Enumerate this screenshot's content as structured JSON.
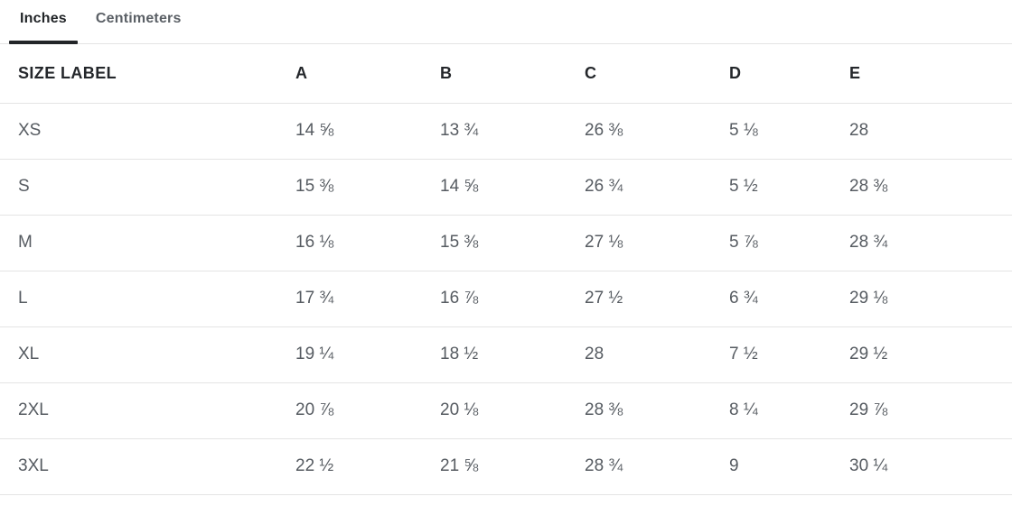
{
  "tabs": [
    {
      "id": "inches",
      "label": "Inches",
      "active": true
    },
    {
      "id": "centimeters",
      "label": "Centimeters",
      "active": false
    }
  ],
  "colors": {
    "active_tab_text": "#222528",
    "inactive_tab_text": "#5b6066",
    "active_tab_indicator": "#222528",
    "header_text": "#24272b",
    "cell_text": "#565b61",
    "divider": "#e4e4e4",
    "background": "#ffffff"
  },
  "table": {
    "headers": [
      "SIZE LABEL",
      "A",
      "B",
      "C",
      "D",
      "E"
    ],
    "rows": [
      [
        "XS",
        "14 ⅝",
        "13 ¾",
        "26 ⅜",
        "5 ⅛",
        "28"
      ],
      [
        "S",
        "15 ⅜",
        "14 ⅝",
        "26 ¾",
        "5 ½",
        "28 ⅜"
      ],
      [
        "M",
        "16 ⅛",
        "15 ⅜",
        "27 ⅛",
        "5 ⅞",
        "28 ¾"
      ],
      [
        "L",
        "17 ¾",
        "16 ⅞",
        "27 ½",
        "6 ¾",
        "29 ⅛"
      ],
      [
        "XL",
        "19 ¼",
        "18 ½",
        "28",
        "7 ½",
        "29 ½"
      ],
      [
        "2XL",
        "20 ⅞",
        "20 ⅛",
        "28 ⅜",
        "8 ¼",
        "29 ⅞"
      ],
      [
        "3XL",
        "22 ½",
        "21 ⅝",
        "28 ¾",
        "9",
        "30 ¼"
      ]
    ]
  }
}
